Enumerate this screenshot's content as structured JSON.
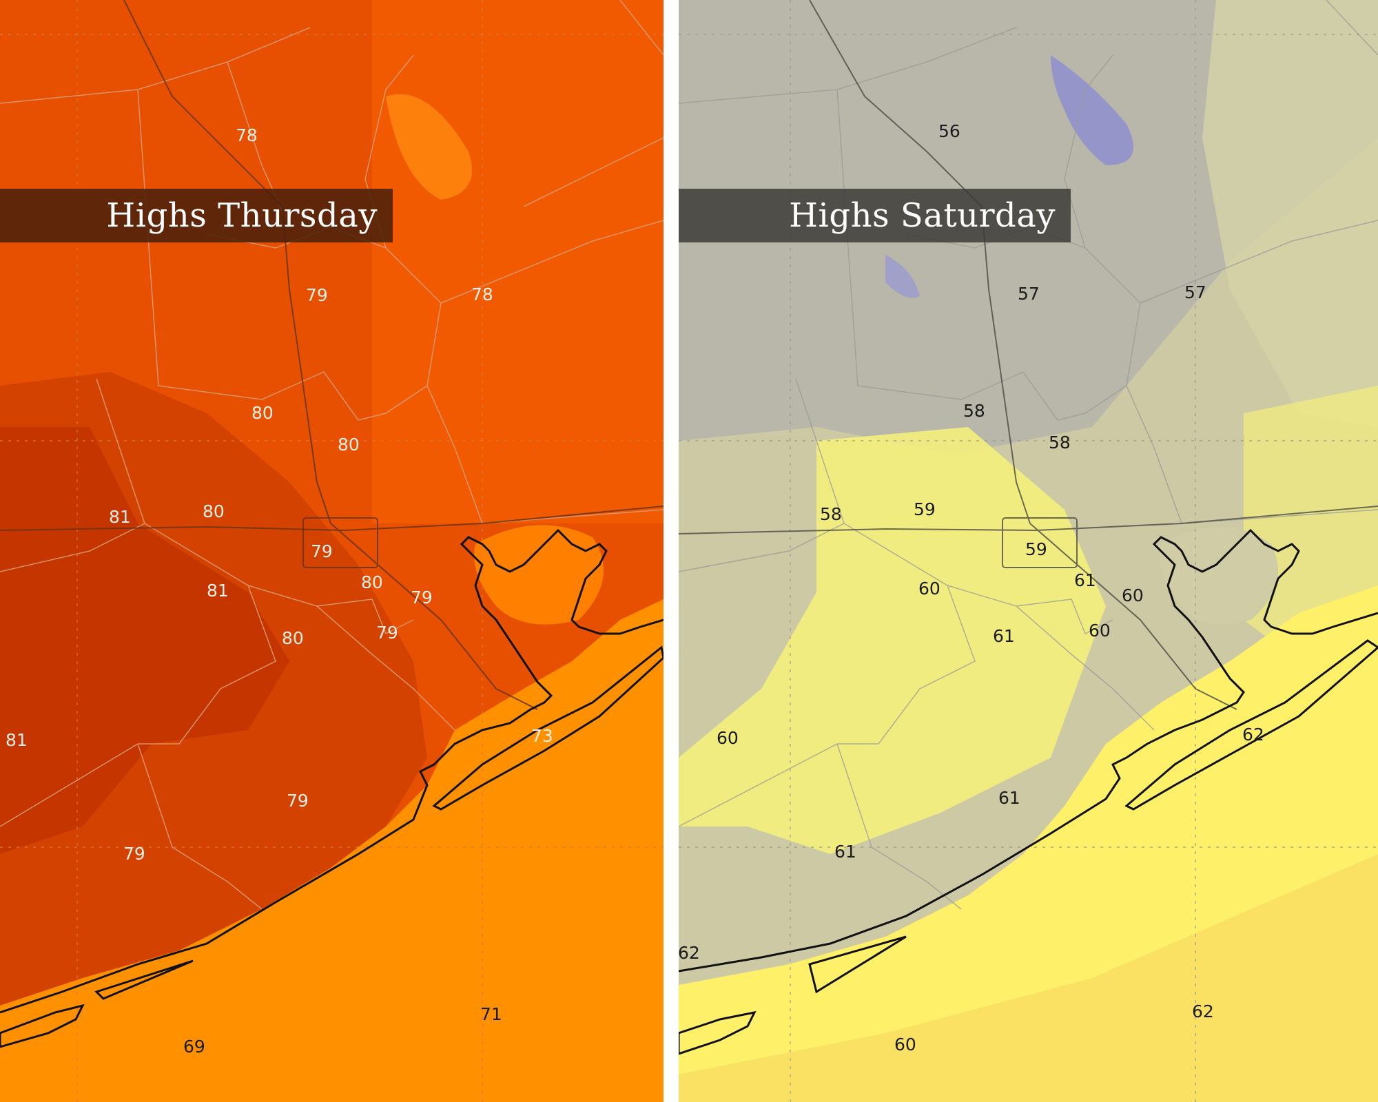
{
  "colors": {
    "thursday_land": "#d44200",
    "thursday_land_dark": "#c43500",
    "thursday_land_light": "#f25a00",
    "thursday_sea": "#ff9000",
    "saturday_land": "#cdc9a4",
    "saturday_land_gray": "#b9b7aa",
    "saturday_land_yellow": "#f7f27a",
    "saturday_sea": "#fff06a",
    "saturday_cold": "#8f8fd0",
    "divider": "#ffffff"
  },
  "panels": {
    "thursday": {
      "title": "Highs Thursday",
      "labels": [
        "78",
        "79",
        "78",
        "80",
        "80",
        "81",
        "80",
        "79",
        "81",
        "80",
        "79",
        "80",
        "79",
        "81",
        "73",
        "79",
        "79",
        "71",
        "69"
      ]
    },
    "saturday": {
      "title": "Highs Saturday",
      "labels": [
        "56",
        "57",
        "57",
        "58",
        "58",
        "58",
        "59",
        "59",
        "60",
        "61",
        "60",
        "61",
        "60",
        "60",
        "62",
        "61",
        "61",
        "62",
        "62",
        "60"
      ]
    }
  }
}
